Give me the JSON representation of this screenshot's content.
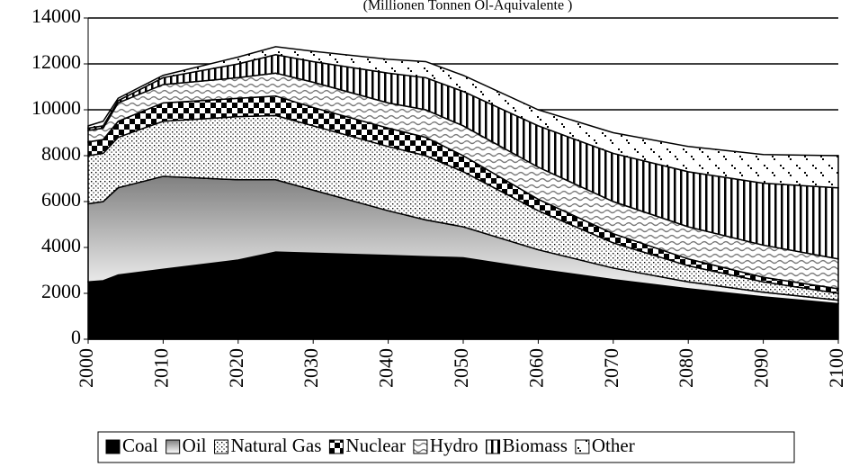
{
  "chart_data": {
    "type": "stacked_area",
    "title": "(Millionen Tonnen Öl-Äquivalente )",
    "x": [
      2000,
      2002,
      2004,
      2010,
      2020,
      2025,
      2030,
      2040,
      2045,
      2050,
      2060,
      2070,
      2080,
      2090,
      2100
    ],
    "series": [
      {
        "name": "Coal",
        "color": "#000000",
        "values": [
          2500,
          2550,
          2800,
          3050,
          3450,
          3800,
          3750,
          3650,
          3600,
          3550,
          3050,
          2600,
          2200,
          1850,
          1550
        ]
      },
      {
        "name": "Oil",
        "color": "#808080",
        "values": [
          3400,
          3450,
          3800,
          4050,
          3500,
          3150,
          2750,
          1950,
          1600,
          1350,
          850,
          500,
          300,
          200,
          150
        ]
      },
      {
        "name": "Natural Gas",
        "color": "#ffffff",
        "values": [
          2100,
          2100,
          2200,
          2400,
          2750,
          2800,
          2800,
          2800,
          2800,
          2400,
          1700,
          1100,
          700,
          450,
          300
        ]
      },
      {
        "name": "Nuclear",
        "color": "#000000",
        "values": [
          600,
          600,
          700,
          800,
          800,
          850,
          800,
          800,
          800,
          700,
          500,
          400,
          300,
          200,
          200
        ]
      },
      {
        "name": "Hydro",
        "color": "#ffffff",
        "values": [
          500,
          500,
          800,
          800,
          900,
          1000,
          1100,
          1100,
          1200,
          1300,
          1400,
          1400,
          1400,
          1400,
          1300
        ]
      },
      {
        "name": "Biomass",
        "color": "#ffffff",
        "values": [
          100,
          100,
          100,
          300,
          600,
          800,
          900,
          1300,
          1400,
          1500,
          1800,
          2100,
          2400,
          2700,
          3100
        ]
      },
      {
        "name": "Other",
        "color": "#ffffff",
        "values": [
          100,
          200,
          100,
          100,
          300,
          350,
          450,
          600,
          700,
          700,
          700,
          900,
          1100,
          1250,
          1400
        ]
      }
    ],
    "xlim": [
      2000,
      2100
    ],
    "xticks": [
      2000,
      2010,
      2020,
      2030,
      2040,
      2050,
      2060,
      2070,
      2080,
      2090,
      2100
    ],
    "ylim": [
      0,
      14000
    ],
    "yticks": [
      0,
      2000,
      4000,
      6000,
      8000,
      10000,
      12000,
      14000
    ],
    "grid": true,
    "legend": "bottom"
  }
}
